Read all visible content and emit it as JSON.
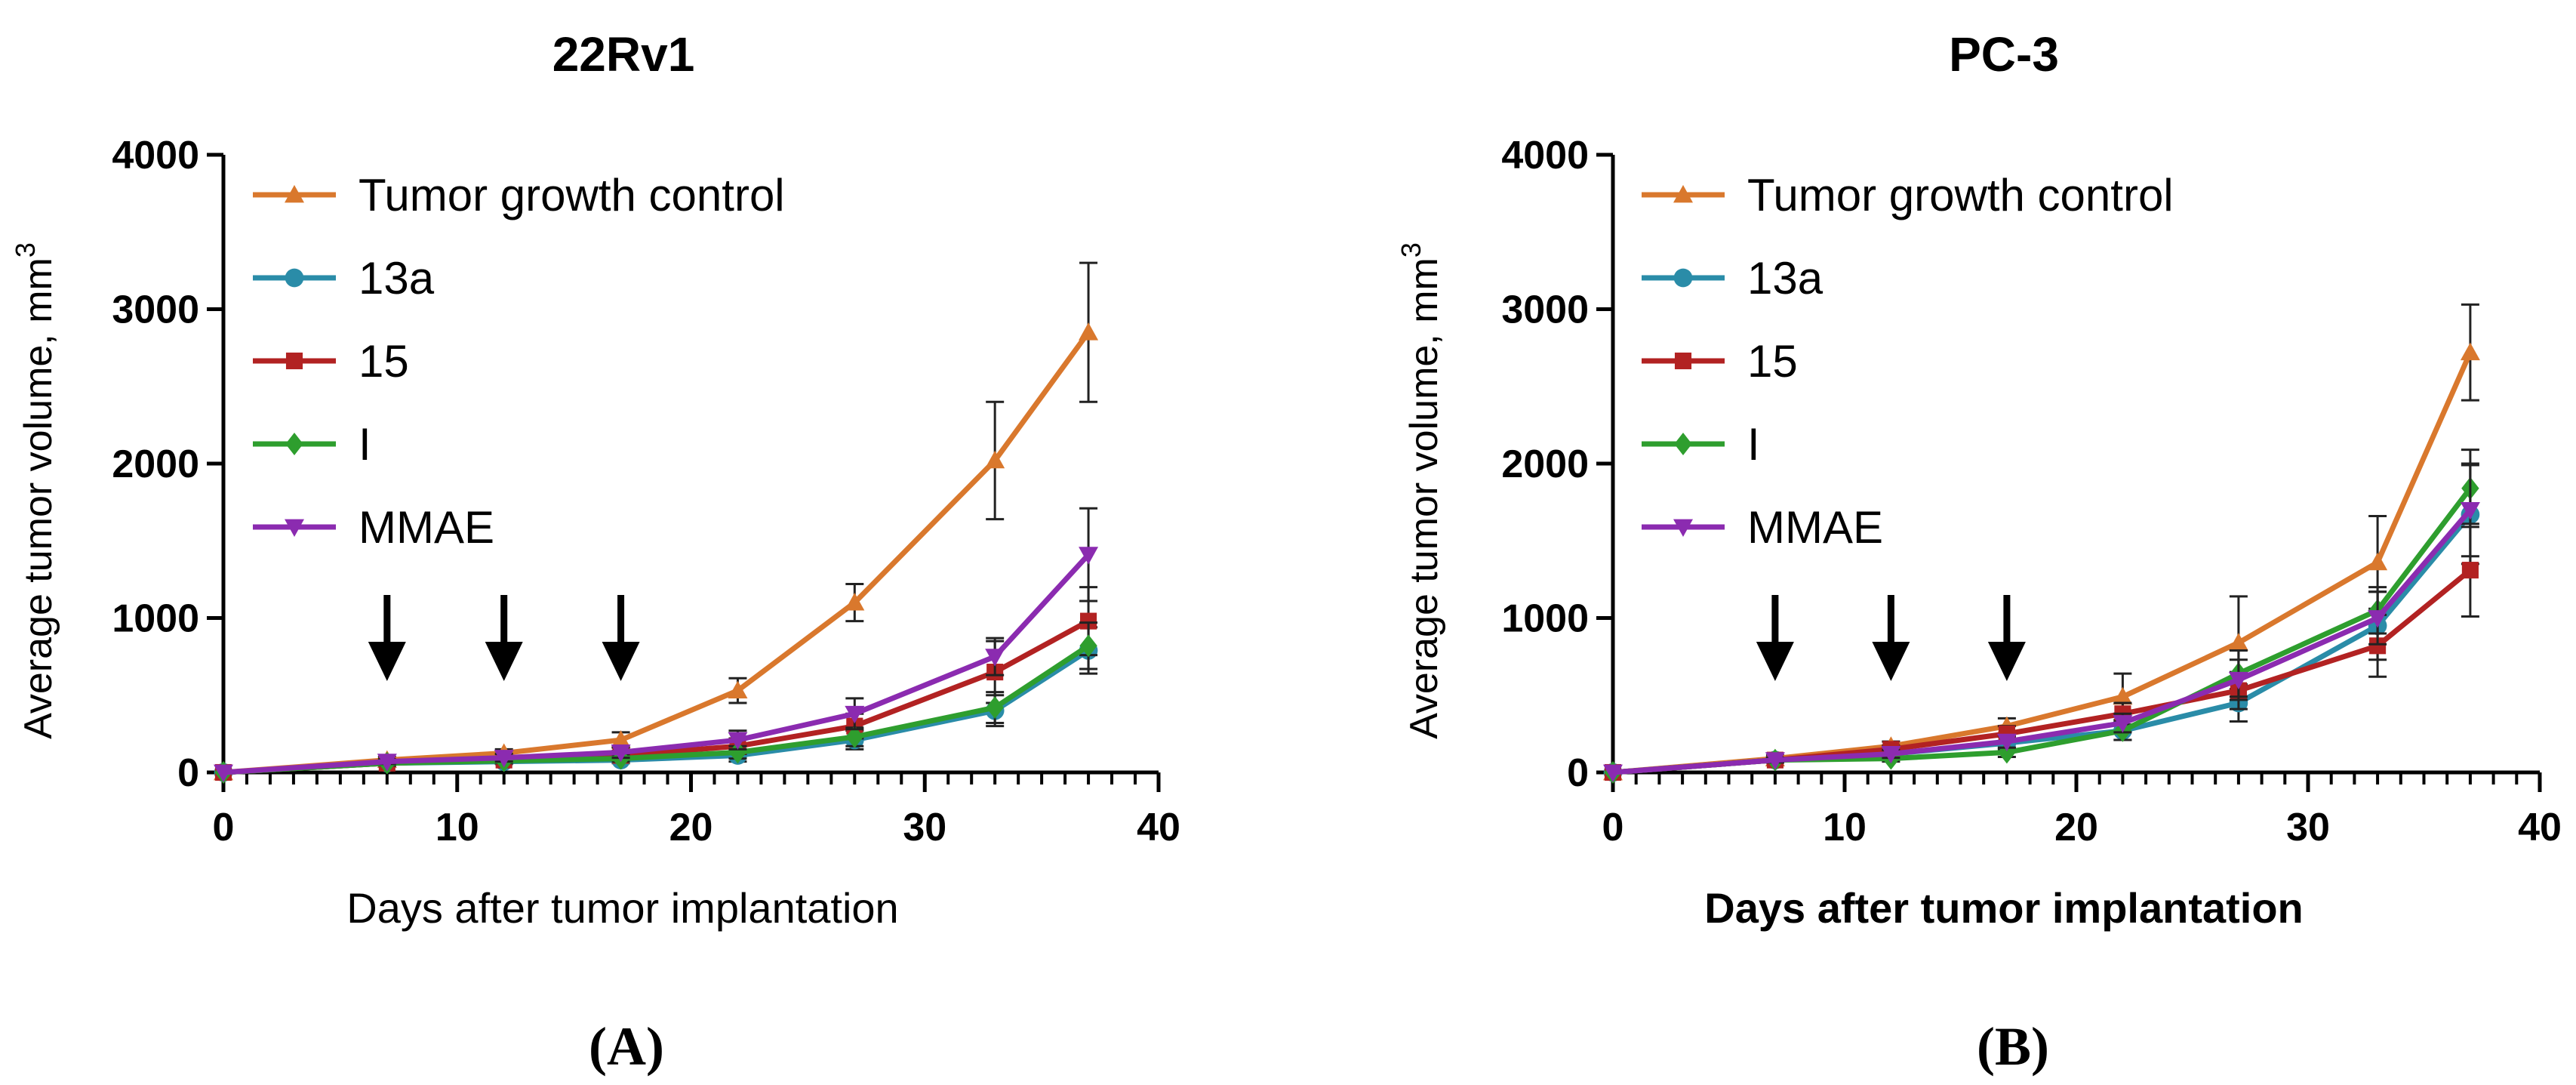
{
  "chart_data": [
    {
      "type": "line",
      "title": "22Rv1",
      "panel_label": "(A)",
      "xlabel": "Days after tumor implantation",
      "ylabel": "Average tumor volume, mm",
      "ylabel_superscript": "3",
      "xlim": [
        0,
        40
      ],
      "ylim": [
        0,
        4000
      ],
      "x_ticks": [
        "0",
        "10",
        "20",
        "30",
        "40"
      ],
      "y_ticks": [
        "0",
        "1000",
        "2000",
        "3000",
        "4000"
      ],
      "arrows_at_days": [
        7,
        12,
        17
      ],
      "x": [
        0,
        7,
        12,
        17,
        22,
        27,
        33,
        37
      ],
      "series": [
        {
          "name": "Tumor growth control",
          "color": "#D9782D",
          "marker": "triangle-up",
          "values": [
            0,
            80,
            125,
            210,
            530,
            1100,
            2020,
            2850
          ],
          "errors": [
            0,
            20,
            25,
            50,
            80,
            120,
            380,
            450
          ]
        },
        {
          "name": "13a",
          "color": "#2A8CA8",
          "marker": "circle",
          "values": [
            0,
            60,
            70,
            80,
            110,
            210,
            400,
            790
          ],
          "errors": [
            0,
            15,
            15,
            20,
            40,
            60,
            100,
            150
          ]
        },
        {
          "name": "15",
          "color": "#B22222",
          "marker": "square",
          "values": [
            0,
            60,
            80,
            110,
            170,
            300,
            650,
            980
          ],
          "errors": [
            0,
            15,
            20,
            30,
            50,
            80,
            200,
            220
          ]
        },
        {
          "name": "I",
          "color": "#2E9E2E",
          "marker": "diamond",
          "values": [
            0,
            60,
            75,
            90,
            130,
            230,
            420,
            820
          ],
          "errors": [
            0,
            15,
            15,
            20,
            40,
            60,
            100,
            150
          ]
        },
        {
          "name": "MMAE",
          "color": "#8B2BB0",
          "marker": "triangle-down",
          "values": [
            0,
            70,
            95,
            130,
            210,
            380,
            750,
            1410
          ],
          "errors": [
            0,
            15,
            25,
            35,
            60,
            100,
            120,
            300
          ]
        }
      ]
    },
    {
      "type": "line",
      "title": "PC-3",
      "panel_label": "(B)",
      "xlabel": "Days after tumor implantation",
      "ylabel": "Average tumor volume, mm",
      "ylabel_superscript": "3",
      "xlim": [
        0,
        40
      ],
      "ylim": [
        0,
        4000
      ],
      "x_ticks": [
        "0",
        "10",
        "20",
        "30",
        "40"
      ],
      "y_ticks": [
        "0",
        "1000",
        "2000",
        "3000",
        "4000"
      ],
      "arrows_at_days": [
        7,
        12,
        17
      ],
      "x": [
        0,
        7,
        12,
        17,
        22,
        27,
        33,
        37
      ],
      "series": [
        {
          "name": "Tumor growth control",
          "color": "#D9782D",
          "marker": "triangle-up",
          "values": [
            0,
            90,
            170,
            300,
            490,
            840,
            1360,
            2720
          ],
          "errors": [
            0,
            20,
            30,
            50,
            150,
            300,
            300,
            310
          ]
        },
        {
          "name": "13a",
          "color": "#2A8CA8",
          "marker": "circle",
          "values": [
            0,
            80,
            120,
            190,
            270,
            450,
            950,
            1670
          ],
          "errors": [
            0,
            15,
            20,
            40,
            60,
            120,
            220,
            320
          ]
        },
        {
          "name": "15",
          "color": "#B22222",
          "marker": "square",
          "values": [
            0,
            80,
            150,
            250,
            380,
            530,
            820,
            1310
          ],
          "errors": [
            0,
            15,
            25,
            50,
            70,
            120,
            200,
            300
          ]
        },
        {
          "name": "I",
          "color": "#2E9E2E",
          "marker": "diamond",
          "values": [
            0,
            80,
            90,
            130,
            270,
            640,
            1050,
            1840
          ],
          "errors": [
            0,
            15,
            20,
            30,
            60,
            150,
            150,
            250
          ]
        },
        {
          "name": "MMAE",
          "color": "#8B2BB0",
          "marker": "triangle-down",
          "values": [
            0,
            80,
            120,
            200,
            320,
            600,
            1000,
            1700
          ],
          "errors": [
            0,
            15,
            25,
            40,
            60,
            130,
            170,
            300
          ]
        }
      ]
    }
  ]
}
